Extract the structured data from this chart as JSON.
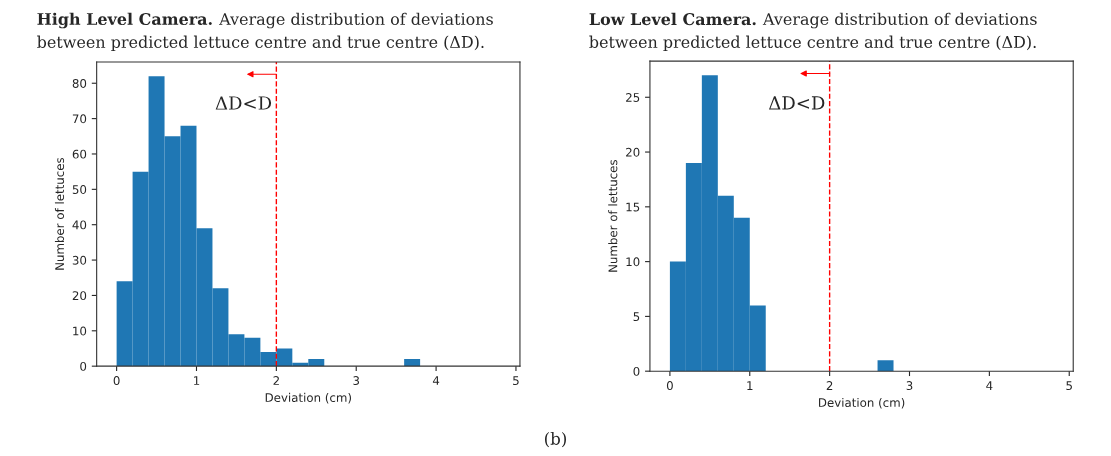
{
  "chart_data": [
    {
      "type": "histogram",
      "title": "High Level Camera.",
      "subtitle": "Average distribution of deviations between predicted lettuce centre and true centre (ΔD).",
      "xlabel": "Deviation (cm)",
      "ylabel": "Number of lettuces",
      "color": "#1f77b4",
      "bins": [
        0,
        0.2,
        0.4,
        0.6,
        0.8,
        1.0,
        1.2,
        1.4,
        1.6,
        1.8,
        2.0,
        2.2,
        2.4,
        2.6,
        2.8,
        3.0,
        3.2,
        3.4,
        3.6,
        3.8
      ],
      "values": [
        24,
        55,
        82,
        65,
        68,
        39,
        22,
        9,
        8,
        4,
        5,
        1,
        2,
        0,
        0,
        0,
        0,
        0,
        2
      ],
      "xlim": [
        -0.25,
        5.05
      ],
      "ylim": [
        0,
        86
      ],
      "xticks": [
        0,
        1,
        2,
        3,
        4,
        5
      ],
      "yticks": [
        0,
        10,
        20,
        30,
        40,
        50,
        60,
        70,
        80
      ],
      "ref_lines": [
        {
          "axis": "x",
          "value": 2,
          "label": "ΔD<D",
          "color": "#ff0000",
          "line_style": "dashed"
        }
      ],
      "grid": false,
      "legend": false
    },
    {
      "type": "histogram",
      "title": "Low Level Camera.",
      "subtitle": "Average distribution of deviations between predicted lettuce centre and true centre (ΔD).",
      "xlabel": "Deviation (cm)",
      "ylabel": "Number of lettuces",
      "color": "#1f77b4",
      "bins": [
        0,
        0.2,
        0.4,
        0.6,
        0.8,
        1.0,
        1.2,
        1.4,
        1.6,
        1.8,
        2.0,
        2.2,
        2.4,
        2.6,
        2.8
      ],
      "values": [
        10,
        19,
        27,
        16,
        14,
        6,
        0,
        0,
        0,
        0,
        0,
        0,
        0,
        1
      ],
      "xlim": [
        -0.25,
        5.05
      ],
      "ylim": [
        0,
        28.3
      ],
      "xticks": [
        0,
        1,
        2,
        3,
        4,
        5
      ],
      "yticks": [
        0,
        5,
        10,
        15,
        20,
        25
      ],
      "ref_lines": [
        {
          "axis": "x",
          "value": 2,
          "label": "ΔD<D",
          "color": "#ff0000",
          "line_style": "dashed"
        }
      ],
      "grid": false,
      "legend": false,
      "annotations": [
        "(b)"
      ]
    }
  ]
}
